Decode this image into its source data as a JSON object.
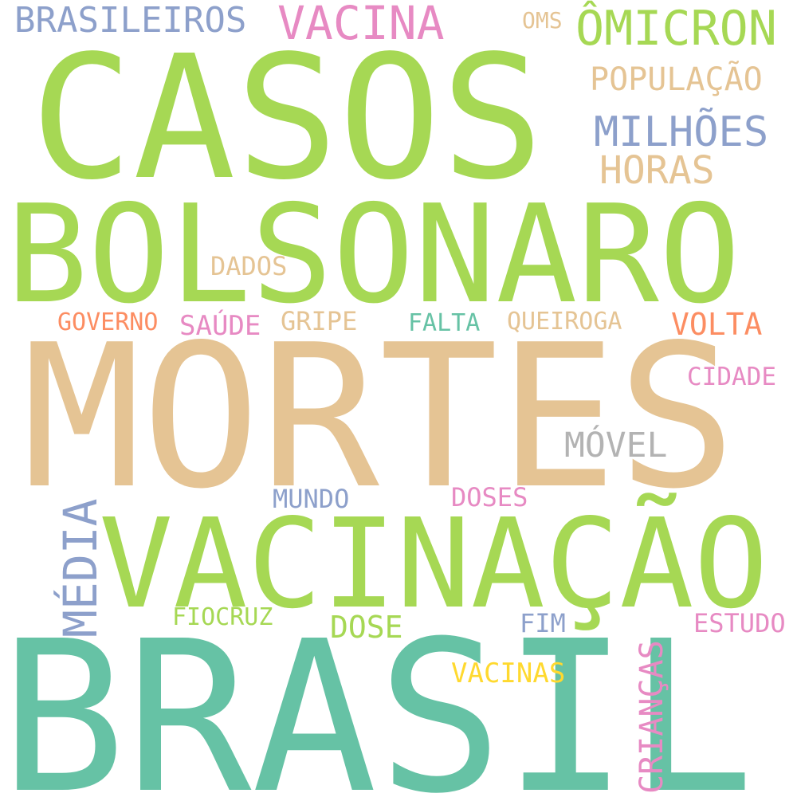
{
  "colors": {
    "green": "#a6d854",
    "tan": "#e5c494",
    "teal": "#66c2a5",
    "blue": "#8da0cb",
    "pink": "#e78ac3",
    "orange": "#fc8d62",
    "yellow": "#ffd92f",
    "gray": "#b3b3b3"
  },
  "words": [
    {
      "id": "casos",
      "text": "CASOS",
      "color": "green"
    },
    {
      "id": "bolsonaro",
      "text": "BOLSONARO",
      "color": "green"
    },
    {
      "id": "mortes",
      "text": "MORTES",
      "color": "tan"
    },
    {
      "id": "vacinacao",
      "text": "VACINAÇÃO",
      "color": "green"
    },
    {
      "id": "brasil",
      "text": "BRASIL",
      "color": "teal"
    },
    {
      "id": "brasileiros",
      "text": "BRASILEIROS",
      "color": "blue"
    },
    {
      "id": "vacina",
      "text": "VACINA",
      "color": "pink"
    },
    {
      "id": "oms",
      "text": "OMS",
      "color": "tan"
    },
    {
      "id": "omicron",
      "text": "ÔMICRON",
      "color": "green"
    },
    {
      "id": "populacao",
      "text": "POPULAÇÃO",
      "color": "tan"
    },
    {
      "id": "milhoes",
      "text": "MILHÕES",
      "color": "blue"
    },
    {
      "id": "horas",
      "text": "HORAS",
      "color": "tan"
    },
    {
      "id": "dados",
      "text": "DADOS",
      "color": "tan"
    },
    {
      "id": "governo",
      "text": "GOVERNO",
      "color": "orange"
    },
    {
      "id": "saude",
      "text": "SAÚDE",
      "color": "pink"
    },
    {
      "id": "gripe",
      "text": "GRIPE",
      "color": "tan"
    },
    {
      "id": "falta",
      "text": "FALTA",
      "color": "teal"
    },
    {
      "id": "queiroga",
      "text": "QUEIROGA",
      "color": "tan"
    },
    {
      "id": "volta",
      "text": "VOLTA",
      "color": "orange"
    },
    {
      "id": "cidade",
      "text": "CIDADE",
      "color": "pink"
    },
    {
      "id": "movel",
      "text": "MÓVEL",
      "color": "gray"
    },
    {
      "id": "media",
      "text": "MÉDIA",
      "color": "blue"
    },
    {
      "id": "mundo",
      "text": "MUNDO",
      "color": "blue"
    },
    {
      "id": "doses",
      "text": "DOSES",
      "color": "pink"
    },
    {
      "id": "fiocruz",
      "text": "FIOCRUZ",
      "color": "green"
    },
    {
      "id": "dose",
      "text": "DOSE",
      "color": "green"
    },
    {
      "id": "fim",
      "text": "FIM",
      "color": "blue"
    },
    {
      "id": "estudo",
      "text": "ESTUDO",
      "color": "pink"
    },
    {
      "id": "criancas",
      "text": "CRIANÇAS",
      "color": "pink"
    },
    {
      "id": "vacinas",
      "text": "VACINAS",
      "color": "yellow"
    }
  ]
}
